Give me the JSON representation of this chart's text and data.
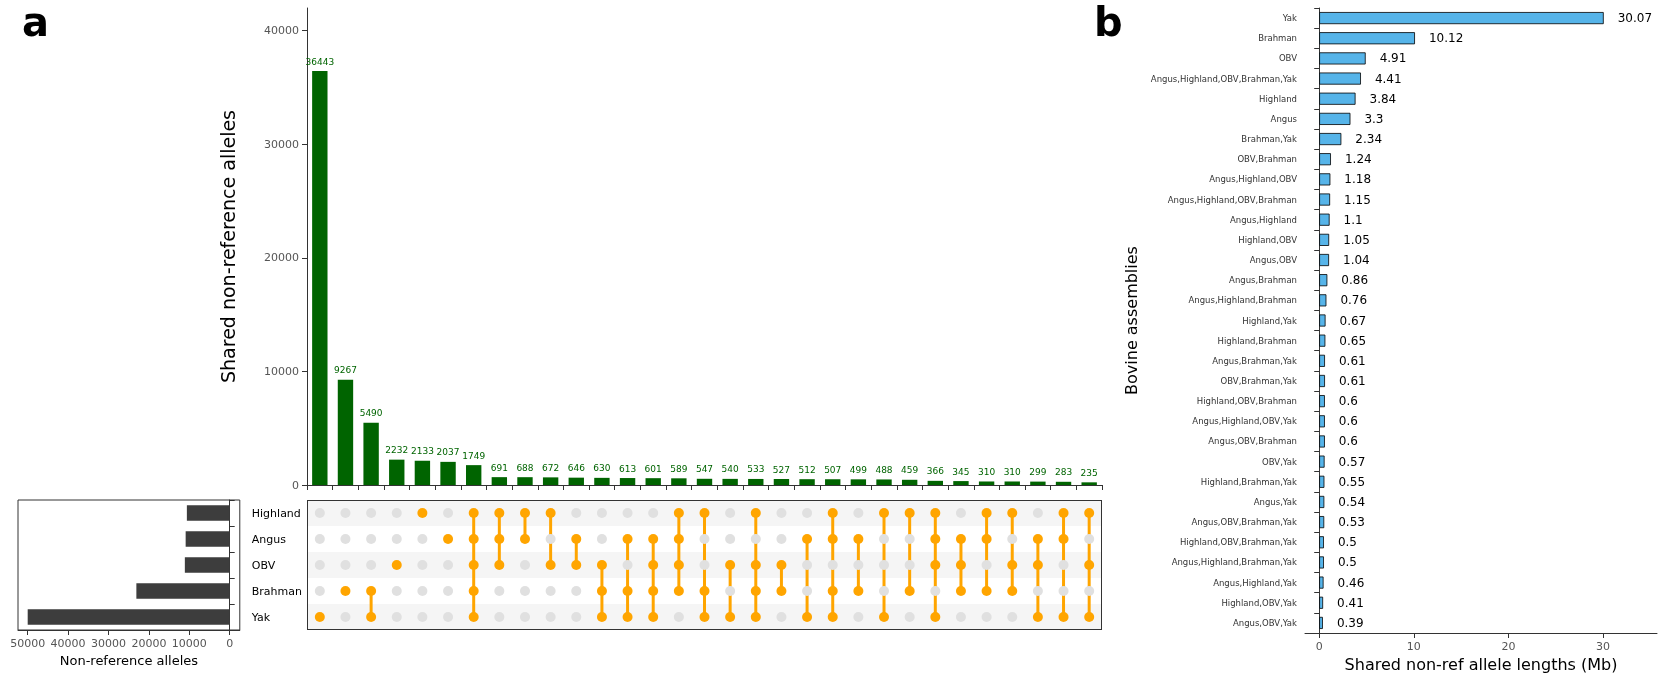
{
  "chart_data": [
    {
      "type": "bar",
      "ylabel": "Shared non-reference alleles",
      "annotations": [
        "a"
      ],
      "categories": [
        null,
        null,
        null,
        null,
        null,
        null,
        null,
        null,
        null,
        null,
        null,
        null,
        null,
        null,
        null,
        null,
        null,
        null,
        null,
        null,
        null,
        null,
        null,
        null,
        null,
        null,
        null,
        null,
        null,
        null,
        null
      ],
      "values": [
        36443,
        9267,
        5490,
        2232,
        2133,
        2037,
        1749,
        691,
        688,
        672,
        646,
        630,
        613,
        601,
        589,
        547,
        540,
        533,
        527,
        512,
        507,
        499,
        488,
        459,
        366,
        345,
        310,
        310,
        299,
        283,
        235
      ],
      "color": "#006400",
      "data_labels": true,
      "ylim": [
        0,
        42000
      ],
      "yticks": [
        0,
        10000,
        20000,
        30000,
        40000
      ]
    },
    {
      "type": "bar",
      "orientation": "horizontal",
      "xlabel": "Non-reference alleles",
      "categories": [
        "Highland",
        "Angus",
        "OBV",
        "Brahman",
        "Yak"
      ],
      "values": [
        10600,
        10900,
        11100,
        23100,
        50000
      ],
      "color": "#3d3d3d",
      "xlim": [
        52400,
        -2500
      ],
      "xticks": [
        50000,
        40000,
        30000,
        20000,
        10000,
        0
      ]
    },
    {
      "type": "other",
      "cells": [
        [
          false,
          false,
          false,
          false,
          true,
          false,
          true,
          true,
          true,
          true,
          false,
          false,
          false,
          false,
          true,
          true,
          false,
          true,
          false,
          false,
          true,
          false,
          true,
          true,
          true,
          false,
          true,
          true,
          false,
          true,
          true
        ],
        [
          false,
          false,
          false,
          false,
          false,
          true,
          true,
          true,
          true,
          false,
          true,
          false,
          true,
          true,
          true,
          false,
          false,
          false,
          false,
          true,
          true,
          true,
          false,
          false,
          true,
          true,
          true,
          false,
          true,
          true,
          false
        ],
        [
          false,
          false,
          false,
          true,
          false,
          false,
          true,
          true,
          false,
          true,
          true,
          true,
          false,
          true,
          true,
          false,
          true,
          true,
          true,
          false,
          false,
          false,
          false,
          false,
          true,
          true,
          false,
          true,
          true,
          false,
          true
        ],
        [
          false,
          true,
          true,
          false,
          false,
          false,
          true,
          false,
          false,
          false,
          false,
          true,
          true,
          true,
          true,
          true,
          false,
          true,
          true,
          false,
          true,
          true,
          false,
          true,
          false,
          true,
          true,
          true,
          false,
          false,
          false
        ],
        [
          true,
          false,
          true,
          false,
          false,
          false,
          true,
          false,
          false,
          false,
          false,
          true,
          true,
          true,
          false,
          true,
          true,
          true,
          false,
          true,
          true,
          false,
          true,
          false,
          true,
          false,
          false,
          false,
          true,
          true,
          true
        ]
      ],
      "colors": [
        "#e0e0e0",
        "#ffa500"
      ]
    },
    {
      "type": "bar",
      "orientation": "horizontal",
      "xlabel": "Shared non-ref allele lengths (Mb)",
      "ylabel": "Bovine assemblies",
      "annotations": [
        "b"
      ],
      "categories": [
        "Yak",
        "Brahman",
        "OBV",
        "Angus,Highland,OBV,Brahman,Yak",
        "Highland",
        "Angus",
        "Brahman,Yak",
        "OBV,Brahman",
        "Angus,Highland,OBV",
        "Angus,Highland,OBV,Brahman",
        "Angus,Highland",
        "Highland,OBV",
        "Angus,OBV",
        "Angus,Brahman",
        "Angus,Highland,Brahman",
        "Highland,Yak",
        "Highland,Brahman",
        "Angus,Brahman,Yak",
        "OBV,Brahman,Yak",
        "Highland,OBV,Brahman",
        "Angus,Highland,OBV,Yak",
        "Angus,OBV,Brahman",
        "OBV,Yak",
        "Highland,Brahman,Yak",
        "Angus,Yak",
        "Angus,OBV,Brahman,Yak",
        "Highland,OBV,Brahman,Yak",
        "Angus,Highland,Brahman,Yak",
        "Angus,Highland,Yak",
        "Highland,OBV,Yak",
        "Angus,OBV,Yak"
      ],
      "values": [
        30.07,
        10.12,
        4.91,
        4.41,
        3.84,
        3.3,
        2.34,
        1.24,
        1.18,
        1.15,
        1.1,
        1.05,
        1.04,
        0.86,
        0.76,
        0.67,
        0.65,
        0.61,
        0.61,
        0.6,
        0.6,
        0.6,
        0.57,
        0.55,
        0.54,
        0.53,
        0.5,
        0.5,
        0.46,
        0.41,
        0.39
      ],
      "color": "#56b4e9",
      "data_labels": true,
      "xlim": [
        -1.5,
        35.7
      ],
      "xticks": [
        0,
        10,
        20,
        30
      ]
    }
  ]
}
